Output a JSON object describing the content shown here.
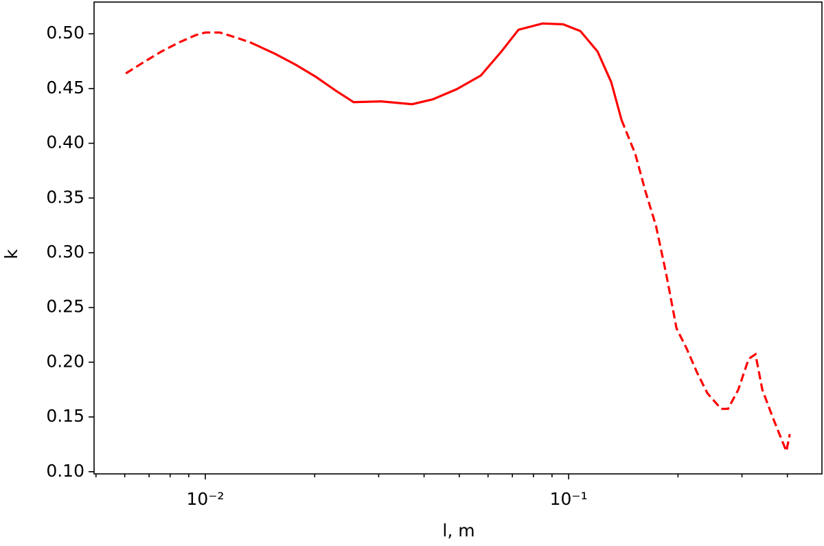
{
  "chart_data": {
    "type": "line",
    "x_label": "l, m",
    "y_label": "k",
    "xscale": "log",
    "xlim": [
      0.00494,
      0.498
    ],
    "ylim": [
      0.098,
      0.529
    ],
    "xticks": [
      {
        "value": 0.01,
        "label": "10⁻²"
      },
      {
        "value": 0.1,
        "label": "10⁻¹"
      }
    ],
    "xminorticks": [
      0.005,
      0.006,
      0.007,
      0.008,
      0.009,
      0.02,
      0.03,
      0.04,
      0.05,
      0.06,
      0.07,
      0.08,
      0.09,
      0.2,
      0.3,
      0.4
    ],
    "yticks": [
      {
        "value": 0.1,
        "label": "0.10"
      },
      {
        "value": 0.15,
        "label": "0.15"
      },
      {
        "value": 0.2,
        "label": "0.20"
      },
      {
        "value": 0.25,
        "label": "0.25"
      },
      {
        "value": 0.3,
        "label": "0.30"
      },
      {
        "value": 0.35,
        "label": "0.35"
      },
      {
        "value": 0.4,
        "label": "0.40"
      },
      {
        "value": 0.45,
        "label": "0.45"
      },
      {
        "value": 0.5,
        "label": "0.50"
      }
    ],
    "series": [
      {
        "color": "#ff0000",
        "style": "dashed",
        "x": [
          0.00604,
          0.00679,
          0.00757,
          0.00844,
          0.00941,
          0.01,
          0.01096,
          0.01222,
          0.01334
        ],
        "values": [
          0.4638,
          0.4744,
          0.4838,
          0.4919,
          0.4988,
          0.5012,
          0.5012,
          0.4963,
          0.4919
        ]
      },
      {
        "color": "#ff0000",
        "style": "solid",
        "x": [
          0.01334,
          0.01552,
          0.0177,
          0.02015,
          0.02296,
          0.02559,
          0.03048,
          0.03707,
          0.04224,
          0.0492,
          0.0573,
          0.06531,
          0.07278,
          0.08477,
          0.09658,
          0.1077,
          0.1201,
          0.131,
          0.1398
        ],
        "values": [
          0.4919,
          0.4819,
          0.4719,
          0.4607,
          0.4476,
          0.4376,
          0.4383,
          0.4357,
          0.4401,
          0.4494,
          0.4619,
          0.4838,
          0.5037,
          0.5094,
          0.5087,
          0.5025,
          0.4838,
          0.4557,
          0.4214
        ]
      },
      {
        "color": "#ff0000",
        "style": "dashed",
        "x": [
          0.1398,
          0.1526,
          0.1628,
          0.1739,
          0.1855,
          0.1981,
          0.2114,
          0.2257,
          0.2409,
          0.2628,
          0.2746,
          0.2931,
          0.3129,
          0.3268,
          0.3413,
          0.3643,
          0.3804,
          0.3974,
          0.4062
        ],
        "values": [
          0.4214,
          0.3902,
          0.3558,
          0.3246,
          0.281,
          0.231,
          0.2123,
          0.1905,
          0.1718,
          0.1574,
          0.1574,
          0.1749,
          0.203,
          0.2073,
          0.1749,
          0.1499,
          0.1343,
          0.1187,
          0.1343
        ]
      }
    ]
  }
}
